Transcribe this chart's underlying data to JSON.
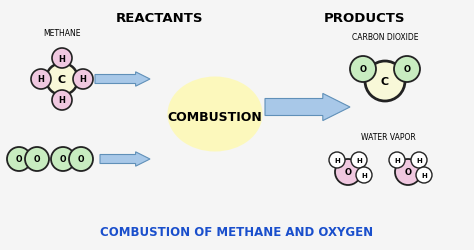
{
  "bg_color": "#f5f5f5",
  "title_text": "COMBUSTION OF METHANE AND OXYGEN",
  "title_color": "#1a4fcc",
  "title_fontsize": 8.5,
  "reactants_label": "REACTANTS",
  "products_label": "PRODUCTS",
  "combustion_label": "COMBUSTION",
  "methane_label": "METHANE",
  "carbon_dioxide_label": "CARBON DIOXIDE",
  "water_vapor_label": "WATER VAPOR",
  "arrow_color": "#a8c8e8",
  "arrow_edge_color": "#6090b8",
  "methane_C_color": "#f8f8d8",
  "methane_C_edge": "#222222",
  "methane_H_color": "#f0c8e0",
  "methane_H_edge": "#222222",
  "O2_color": "#c8ecc0",
  "O2_edge": "#222222",
  "CO2_C_color": "#f8f8d8",
  "CO2_C_edge": "#222222",
  "CO2_O_color": "#c8ecc0",
  "CO2_O_edge": "#222222",
  "H2O_O_color": "#f0c8e0",
  "H2O_O_edge": "#222222",
  "H2O_H_color": "#ffffff",
  "H2O_H_edge": "#222222"
}
